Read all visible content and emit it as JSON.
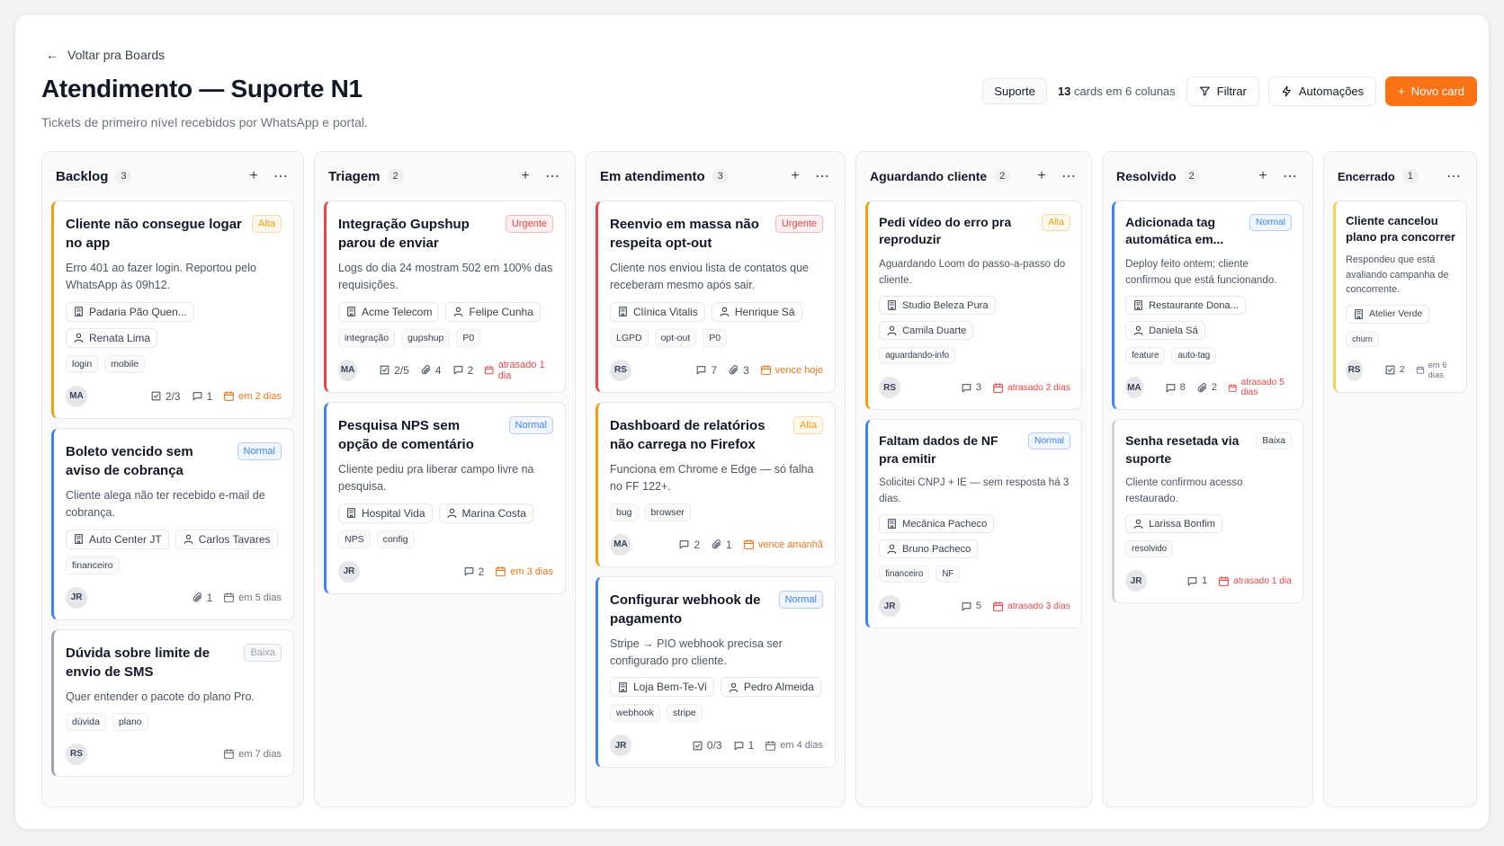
{
  "header": {
    "back": "Voltar pra Boards",
    "title": "Atendimento — Suporte N1",
    "subtitle": "Tickets de primeiro nível recebidos por WhatsApp e portal.",
    "badge": "Suporte",
    "count": 13,
    "count_text": "cards em 6 colunas",
    "filter": "Filtrar",
    "automations": "Automações",
    "new_card": "Novo card"
  },
  "columns": [
    {
      "name": "Backlog",
      "count": 3,
      "cards": [
        {
          "title": "Cliente não consegue logar no app",
          "priority": "Alta",
          "color": "#f59e0b",
          "description": "Erro 401 ao fazer login. Reportou pelo WhatsApp às 09h12.",
          "company": "Padaria Pão Quen...",
          "assignee": "Renata Lima",
          "tags": [
            "login",
            "mobile"
          ],
          "avatar": "MA",
          "stats": [
            {
              "icon": "check",
              "value": "2/3"
            },
            {
              "icon": "comment",
              "value": 1
            }
          ],
          "due": "em 2 dias",
          "due_color": "#f97316"
        },
        {
          "title": "Boleto vencido sem aviso de cobrança",
          "priority": "Normal",
          "color": "#3b82f6",
          "description": "Cliente alega não ter recebido e-mail de cobrança.",
          "company": "Auto Center JT",
          "assignee": "Carlos Tavares",
          "tags": [
            "financeiro"
          ],
          "avatar": "JR",
          "stats": [
            {
              "icon": "clip",
              "value": 1
            }
          ],
          "due": "em 5 dias",
          "due_color": "#6b7280"
        },
        {
          "title": "Dúvida sobre limite de envio de SMS",
          "priority": "Baixa",
          "color": "#9ca3af",
          "description": "Quer entender o pacote do plano Pro.",
          "tags": [
            "dúvida",
            "plano"
          ],
          "avatar": "RS",
          "stats": [],
          "due": "em 7 dias",
          "due_color": "#6b7280"
        }
      ]
    },
    {
      "name": "Triagem",
      "count": 2,
      "cards": [
        {
          "title": "Integração Gupshup parou de enviar",
          "priority": "Urgente",
          "color": "#ef4444",
          "description": "Logs do dia 24 mostram 502 em 100% das requisições.",
          "company": "Acme Telecom",
          "assignee": "Felipe Cunha",
          "tags": [
            "integração",
            "gupshup",
            "P0"
          ],
          "avatar": "MA",
          "stats": [
            {
              "icon": "check",
              "value": "2/5"
            },
            {
              "icon": "clip",
              "value": 4
            },
            {
              "icon": "comment",
              "value": 2
            }
          ],
          "due": "atrasado 1 dia",
          "due_color": "#ef4444"
        },
        {
          "title": "Pesquisa NPS sem opção de comentário",
          "priority": "Normal",
          "color": "#3b82f6",
          "description": "Cliente pediu pra liberar campo livre na pesquisa.",
          "company": "Hospital Vida",
          "assignee": "Marina Costa",
          "tags": [
            "NPS",
            "config"
          ],
          "avatar": "JR",
          "stats": [
            {
              "icon": "comment",
              "value": 2
            }
          ],
          "due": "em 3 dias",
          "due_color": "#f97316"
        }
      ]
    },
    {
      "name": "Em atendimento",
      "count": 3,
      "cards": [
        {
          "title": "Reenvio em massa não respeita opt-out",
          "priority": "Urgente",
          "color": "#ef4444",
          "description": "Cliente nos enviou lista de contatos que receberam mesmo após sair.",
          "company": "Clínica Vitalis",
          "assignee": "Henrique Sá",
          "tags": [
            "LGPD",
            "opt-out",
            "P0"
          ],
          "avatar": "RS",
          "stats": [
            {
              "icon": "comment",
              "value": 7
            },
            {
              "icon": "clip",
              "value": 3
            }
          ],
          "due": "vence hoje",
          "due_color": "#f97316"
        },
        {
          "title": "Dashboard de relatórios não carrega no Firefox",
          "priority": "Alta",
          "color": "#f59e0b",
          "description": "Funciona em Chrome e Edge — só falha no FF 122+.",
          "tags": [
            "bug",
            "browser"
          ],
          "avatar": "MA",
          "stats": [
            {
              "icon": "comment",
              "value": 2
            },
            {
              "icon": "clip",
              "value": 1
            }
          ],
          "due": "vence amanhã",
          "due_color": "#f97316"
        },
        {
          "title": "Configurar webhook de pagamento",
          "priority": "Normal",
          "color": "#3b82f6",
          "description": "Stripe → PIO webhook precisa ser configurado pro cliente.",
          "company": "Loja Bem-Te-Vi",
          "assignee": "Pedro Almeida",
          "tags": [
            "webhook",
            "stripe"
          ],
          "avatar": "JR",
          "stats": [
            {
              "icon": "check",
              "value": "0/3"
            },
            {
              "icon": "comment",
              "value": 1
            }
          ],
          "due": "em 4 dias",
          "due_color": "#6b7280"
        }
      ]
    },
    {
      "name": "Aguardando cliente",
      "count": 2,
      "cards": [
        {
          "title": "Pedi vídeo do erro pra reproduzir",
          "priority": "Alta",
          "color": "#f59e0b",
          "description": "Aguardando Loom do passo-a-passo do cliente.",
          "company": "Studio Beleza Pura",
          "assignee": "Camila Duarte",
          "tags": [
            "aguardando-info"
          ],
          "avatar": "RS",
          "stats": [
            {
              "icon": "comment",
              "value": 3
            }
          ],
          "due": "atrasado 2 dias",
          "due_color": "#ef4444"
        },
        {
          "title": "Faltam dados de NF pra emitir",
          "priority": "Normal",
          "color": "#3b82f6",
          "description": "Solicitei CNPJ + IE — sem resposta há 3 dias.",
          "company": "Mecânica Pacheco",
          "assignee": "Bruno Pacheco",
          "tags": [
            "financeiro",
            "NF"
          ],
          "avatar": "JR",
          "stats": [
            {
              "icon": "comment",
              "value": 5
            }
          ],
          "due": "atrasado 3 dias",
          "due_color": "#ef4444"
        }
      ]
    },
    {
      "name": "Resolvido",
      "count": 2,
      "cards": [
        {
          "title": "Adicionada tag automática em...",
          "priority": "Normal",
          "color": "#3b82f6",
          "description": "Deploy feito ontem; cliente confirmou que está funcionando.",
          "company": "Restaurante Dona...",
          "assignee": "Daniela Sá",
          "tags": [
            "feature",
            "auto-tag"
          ],
          "avatar": "MA",
          "stats": [
            {
              "icon": "comment",
              "value": 8
            },
            {
              "icon": "clip",
              "value": 2
            }
          ],
          "due": "atrasado 5 dias",
          "due_color": "#ef4444"
        },
        {
          "title": "Senha resetada via suporte",
          "priority": "Baixa",
          "color": "#d1d5db",
          "description": "Cliente confirmou acesso restaurado.",
          "assignee": "Larissa Bonfim",
          "tags": [
            "resolvido"
          ],
          "avatar": "JR",
          "stats": [
            {
              "icon": "comment",
              "value": 1
            }
          ],
          "due": "atrasado 1 dia",
          "due_color": "#ef4444"
        }
      ]
    },
    {
      "name": "Encerrado",
      "count": 1,
      "cards": [
        {
          "title": "Cliente cancelou plano pra concorrer",
          "color": "#fcd34d",
          "description": "Respondeu que está avaliando campanha de concorrente.",
          "company": "Atelier Verde",
          "tags": [
            "churn"
          ],
          "avatar": "RS",
          "stats": [
            {
              "icon": "check",
              "value": 2
            }
          ],
          "due": "em 6 dias",
          "due_color": "#6b7280"
        }
      ]
    }
  ]
}
